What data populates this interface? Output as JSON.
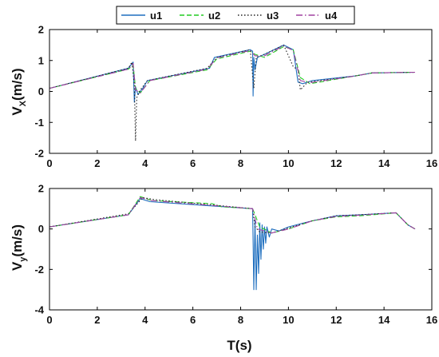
{
  "chart_data": [
    {
      "type": "line",
      "ylabel_main": "V",
      "ylabel_sub": "X",
      "ylabel_unit": "(m/s)",
      "xlabel": "",
      "xlim": [
        0,
        16
      ],
      "ylim": [
        -2,
        2
      ],
      "xticks": [
        "0",
        "2",
        "4",
        "6",
        "8",
        "10",
        "12",
        "14",
        "16"
      ],
      "yticks": [
        "2",
        "1",
        "0",
        "-1",
        "-2"
      ],
      "grid": false,
      "series": [
        {
          "name": "u1",
          "color": "#1f6fbf",
          "dash": "",
          "x": [
            0,
            3.3,
            3.4,
            3.5,
            3.55,
            3.6,
            3.7,
            3.9,
            4.1,
            6.7,
            6.9,
            8.4,
            8.5,
            8.52,
            8.55,
            8.6,
            8.7,
            9.0,
            9.8,
            10.2,
            10.4,
            10.6,
            11,
            12.8,
            13.5,
            15.3
          ],
          "y": [
            0.1,
            0.75,
            0.85,
            0.95,
            -0.35,
            0.15,
            -0.1,
            0.1,
            0.35,
            0.75,
            1.1,
            1.35,
            1.3,
            -0.15,
            1.1,
            0.7,
            1.1,
            1.2,
            1.5,
            1.35,
            0.3,
            0.25,
            0.35,
            0.5,
            0.6,
            0.62
          ]
        },
        {
          "name": "u2",
          "color": "#22cc22",
          "dash": "6,3",
          "x": [
            0,
            3.3,
            3.5,
            3.6,
            3.8,
            4.2,
            6.6,
            7.0,
            8.4,
            8.6,
            9.0,
            9.8,
            10.2,
            10.5,
            10.9,
            12.8,
            13.5,
            15.3
          ],
          "y": [
            0.1,
            0.72,
            0.85,
            0.1,
            -0.05,
            0.35,
            0.7,
            1.05,
            1.3,
            1.2,
            1.1,
            1.45,
            1.35,
            0.45,
            0.25,
            0.5,
            0.6,
            0.62
          ]
        },
        {
          "name": "u3",
          "color": "#222222",
          "dash": "1.5,2.5",
          "x": [
            0,
            3.3,
            3.45,
            3.55,
            3.6,
            3.65,
            3.8,
            4.1,
            6.6,
            7.0,
            8.4,
            8.55,
            8.65,
            9.0,
            9.8,
            10.2,
            10.4,
            10.5,
            10.8,
            12.8,
            13.5,
            15.3
          ],
          "y": [
            0.1,
            0.75,
            0.95,
            0.2,
            -1.6,
            -0.2,
            0.05,
            0.35,
            0.75,
            1.1,
            1.35,
            0.1,
            1.1,
            1.2,
            1.5,
            0.8,
            0.7,
            0.05,
            0.3,
            0.5,
            0.6,
            0.62
          ]
        },
        {
          "name": "u4",
          "color": "#a040a0",
          "dash": "8,3,1.5,3",
          "x": [
            0,
            3.3,
            3.5,
            3.6,
            3.8,
            4.2,
            6.6,
            7.0,
            8.4,
            8.6,
            9.0,
            9.8,
            10.2,
            10.5,
            10.9,
            12.8,
            13.5,
            15.3
          ],
          "y": [
            0.1,
            0.72,
            0.9,
            0.05,
            -0.05,
            0.35,
            0.72,
            1.08,
            1.32,
            1.15,
            1.15,
            1.47,
            1.32,
            0.35,
            0.28,
            0.5,
            0.6,
            0.62
          ]
        }
      ]
    },
    {
      "type": "line",
      "ylabel_main": "V",
      "ylabel_sub": "y",
      "ylabel_unit": "(m/s)",
      "xlabel": "T(s)",
      "xlim": [
        0,
        16
      ],
      "ylim": [
        -4,
        2
      ],
      "xticks": [
        "0",
        "2",
        "4",
        "6",
        "8",
        "10",
        "12",
        "14",
        "16"
      ],
      "yticks": [
        "2",
        "0",
        "-2",
        "-4"
      ],
      "grid": false,
      "series": [
        {
          "name": "u1",
          "color": "#1f6fbf",
          "dash": "",
          "x": [
            0,
            3.3,
            3.8,
            4.2,
            8.5,
            8.55,
            8.6,
            8.65,
            8.7,
            8.75,
            8.8,
            8.85,
            8.9,
            8.95,
            9.0,
            9.05,
            9.1,
            9.2,
            9.3,
            9.6,
            10.0,
            11.0,
            12.0,
            13.0,
            14.5,
            15.0,
            15.3
          ],
          "y": [
            0.1,
            0.7,
            1.5,
            1.35,
            1.0,
            -3.0,
            0.5,
            -3.0,
            -0.3,
            -2.2,
            0.3,
            -1.5,
            0.2,
            -1.0,
            0.1,
            -0.7,
            0.1,
            -0.4,
            0.0,
            -0.1,
            0.1,
            0.4,
            0.65,
            0.7,
            0.8,
            0.2,
            0.0
          ]
        },
        {
          "name": "u2",
          "color": "#22cc22",
          "dash": "6,3",
          "x": [
            0,
            3.3,
            3.8,
            4.3,
            6.8,
            7.2,
            8.5,
            8.8,
            9.3,
            10.0,
            11.0,
            12.0,
            13.0,
            14.5,
            15.0,
            15.3
          ],
          "y": [
            0.1,
            0.7,
            1.6,
            1.4,
            1.25,
            1.1,
            1.0,
            0.1,
            -0.2,
            0.0,
            0.4,
            0.6,
            0.65,
            0.8,
            0.2,
            0.0
          ]
        },
        {
          "name": "u3",
          "color": "#222222",
          "dash": "1.5,2.5",
          "x": [
            0,
            3.3,
            3.9,
            4.4,
            8.5,
            8.6,
            8.8,
            9.3,
            10.0,
            11.0,
            12.0,
            13.0,
            14.5,
            15.0,
            15.3
          ],
          "y": [
            0.1,
            0.75,
            1.55,
            1.45,
            1.0,
            0.1,
            -0.15,
            -0.2,
            0.05,
            0.4,
            0.65,
            0.7,
            0.8,
            0.2,
            0.0
          ]
        },
        {
          "name": "u4",
          "color": "#a040a0",
          "dash": "8,3,1.5,3",
          "x": [
            0,
            3.3,
            3.8,
            4.3,
            8.5,
            8.7,
            9.3,
            10.0,
            11.0,
            12.0,
            13.0,
            14.5,
            15.0,
            15.3
          ],
          "y": [
            0.1,
            0.7,
            1.55,
            1.4,
            1.0,
            0.0,
            -0.2,
            0.0,
            0.4,
            0.62,
            0.68,
            0.8,
            0.2,
            0.0
          ]
        }
      ]
    }
  ],
  "legend": {
    "placement": "top-center",
    "entries": [
      "u1",
      "u2",
      "u3",
      "u4"
    ]
  }
}
